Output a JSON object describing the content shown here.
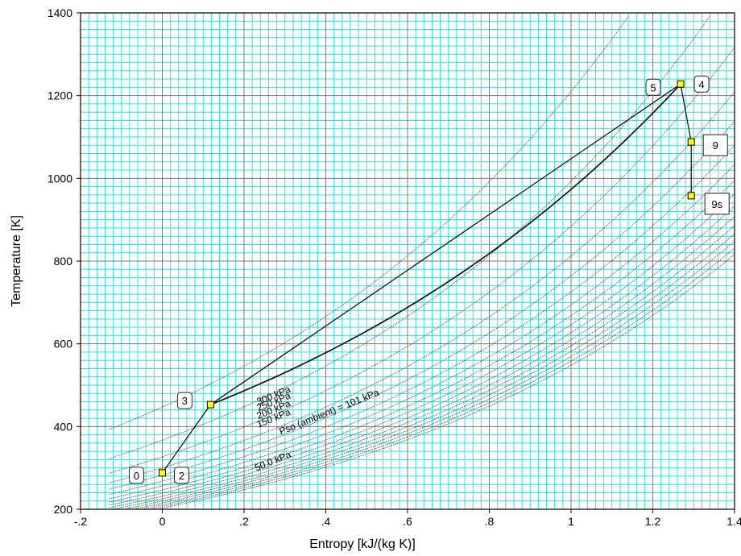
{
  "chart_data": {
    "type": "line",
    "title": "",
    "xlabel": "Entropy [kJ/(kg K)]",
    "ylabel": "Temperature [K]",
    "xlim": [
      -0.2,
      1.4
    ],
    "ylim": [
      200,
      1400
    ],
    "grid": true,
    "x_ticks": [
      -0.2,
      0,
      0.2,
      0.4,
      0.6,
      0.8,
      1.0,
      1.2,
      1.4
    ],
    "x_tick_labels": [
      "-.2",
      "0",
      ".2",
      ".4",
      ".6",
      ".8",
      "1",
      "1.2",
      "1.4"
    ],
    "y_ticks": [
      200,
      400,
      600,
      800,
      1000,
      1200,
      1400
    ],
    "y_tick_labels": [
      "200",
      "400",
      "600",
      "800",
      "1000",
      "1200",
      "1400"
    ],
    "colors": {
      "minor_grid": "#2fe0e0",
      "major_grid": "#7a7a7a",
      "marker_fill": "#ffff00",
      "line": "#000000",
      "background": "#ffffff"
    },
    "isobars": {
      "reference_temperature_K": 300,
      "cp": 1.005,
      "s_range": [
        -0.13,
        1.4
      ],
      "pressures_kPa": [
        25,
        50,
        75,
        101,
        125,
        150,
        175,
        200,
        225,
        250,
        275,
        300,
        325,
        350,
        375,
        400
      ],
      "labels": [
        {
          "text": "50.0 kPa",
          "s": 0.23,
          "T": 292
        },
        {
          "text": "Pso (ambient) =  101 kPa",
          "s": 0.29,
          "T": 380
        },
        {
          "text": "150 kPa",
          "s": 0.235,
          "T": 397
        },
        {
          "text": "200 kPa",
          "s": 0.235,
          "T": 418
        },
        {
          "text": "250 kPa",
          "s": 0.235,
          "T": 437
        },
        {
          "text": "300 kPa",
          "s": 0.235,
          "T": 452
        }
      ]
    },
    "process_line": {
      "points": [
        {
          "label": "2",
          "s": 0.0,
          "T": 288
        },
        {
          "label": "3",
          "s": 0.118,
          "T": 453
        },
        {
          "label": "4",
          "s": 1.268,
          "T": 1228
        },
        {
          "label": "9",
          "s": 1.294,
          "T": 1088
        },
        {
          "label": "9s",
          "s": 1.294,
          "T": 958
        }
      ]
    },
    "states": [
      {
        "label": "0",
        "s": 0.0,
        "T": 288,
        "marker": true
      },
      {
        "label": "2",
        "s": 0.0,
        "T": 288,
        "marker": false
      },
      {
        "label": "3",
        "s": 0.118,
        "T": 453,
        "marker": true
      },
      {
        "label": "4",
        "s": 1.268,
        "T": 1228,
        "marker": true
      },
      {
        "label": "5",
        "s": 1.268,
        "T": 1228,
        "marker": false
      },
      {
        "label": "9",
        "s": 1.294,
        "T": 1088,
        "marker": true
      },
      {
        "label": "9s",
        "s": 1.294,
        "T": 958,
        "marker": true
      }
    ]
  }
}
